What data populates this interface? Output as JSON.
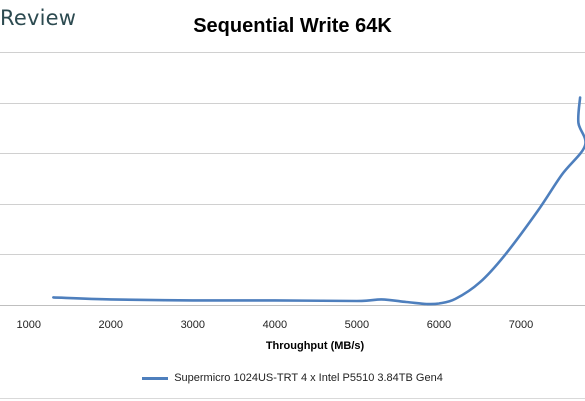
{
  "watermark": "Review",
  "chart_data": {
    "type": "line",
    "title": "Sequential Write 64K",
    "xlabel": "Throughput (MB/s)",
    "ylabel": "",
    "x_ticks": [
      1000,
      2000,
      3000,
      4000,
      5000,
      6000,
      7000
    ],
    "xlim": [
      650,
      7780
    ],
    "ylim": [
      0,
      5
    ],
    "grid": true,
    "legend": "bottom",
    "series": [
      {
        "name": "Supermicro 1024US-TRT 4 x Intel P5510 3.84TB Gen4",
        "color": "#4e7fbd",
        "points": [
          [
            1300,
            0.15
          ],
          [
            2000,
            0.11
          ],
          [
            3000,
            0.09
          ],
          [
            4000,
            0.09
          ],
          [
            5000,
            0.08
          ],
          [
            5300,
            0.11
          ],
          [
            5600,
            0.06
          ],
          [
            5850,
            0.02
          ],
          [
            6000,
            0.03
          ],
          [
            6200,
            0.12
          ],
          [
            6500,
            0.45
          ],
          [
            6800,
            0.98
          ],
          [
            7200,
            1.85
          ],
          [
            7500,
            2.58
          ],
          [
            7780,
            3.15
          ],
          [
            7700,
            3.6
          ],
          [
            7720,
            4.1
          ]
        ]
      }
    ]
  }
}
